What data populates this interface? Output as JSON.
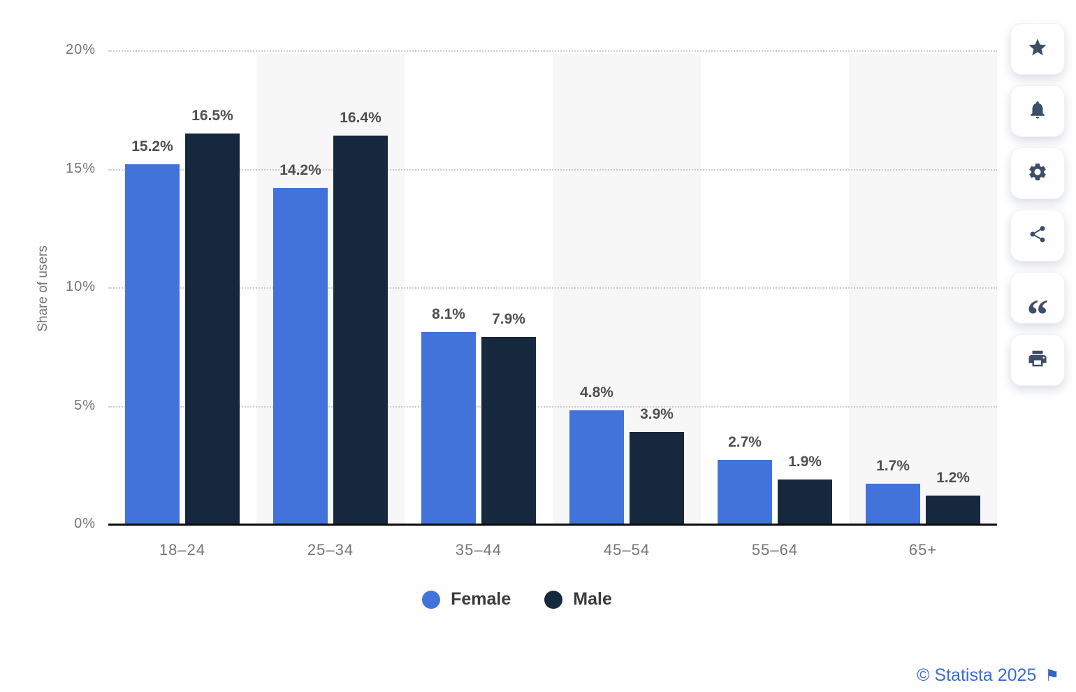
{
  "chart_data": {
    "type": "bar",
    "title": "",
    "categories": [
      "18–24",
      "25–34",
      "35–44",
      "45–54",
      "55–64",
      "65+"
    ],
    "series": [
      {
        "name": "Female",
        "color": "#4273da",
        "values": [
          15.2,
          14.2,
          8.1,
          4.8,
          2.7,
          1.7
        ],
        "labels": [
          "15.2%",
          "14.2%",
          "8.1%",
          "4.8%",
          "2.7%",
          "1.7%"
        ]
      },
      {
        "name": "Male",
        "color": "#16283e",
        "values": [
          16.5,
          16.4,
          7.9,
          3.9,
          1.9,
          1.2
        ],
        "labels": [
          "16.5%",
          "16.4%",
          "7.9%",
          "3.9%",
          "1.9%",
          "1.2%"
        ]
      }
    ],
    "xlabel": "",
    "ylabel": "Share of users",
    "ylim": [
      0,
      20
    ],
    "yticks": [
      {
        "value": 0,
        "label": "0%"
      },
      {
        "value": 5,
        "label": "5%"
      },
      {
        "value": 10,
        "label": "10%"
      },
      {
        "value": 15,
        "label": "15%"
      },
      {
        "value": 20,
        "label": "20%"
      }
    ],
    "grid": "horizontal-dotted",
    "zebra_stripes": "on-even-categories",
    "legend_position": "bottom"
  },
  "toolbar": {
    "buttons": [
      {
        "name": "favorite",
        "icon": "star-icon"
      },
      {
        "name": "alerts",
        "icon": "bell-icon"
      },
      {
        "name": "settings",
        "icon": "gear-icon"
      },
      {
        "name": "share",
        "icon": "share-icon"
      },
      {
        "name": "cite",
        "icon": "quote-icon"
      },
      {
        "name": "print",
        "icon": "printer-icon"
      }
    ]
  },
  "footer": {
    "copyright": "© Statista 2025",
    "flag": "⚑"
  },
  "colors": {
    "female_bar": "#4273da",
    "male_bar": "#16283e",
    "stripe": "#f7f7f8",
    "grid": "#cbcbcb",
    "axis_text": "#757575",
    "value_label": "#4f4f4f",
    "accent_blue": "#3a6bd4",
    "icon_slate": "#3d4f68"
  }
}
